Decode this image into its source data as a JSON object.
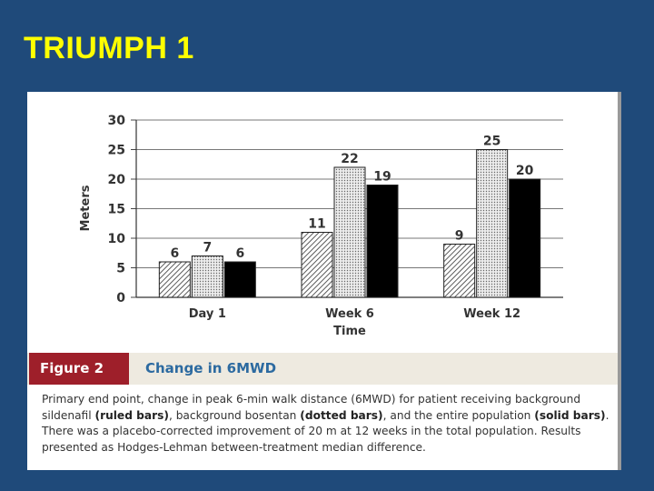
{
  "slide": {
    "title": "TRIUMPH 1"
  },
  "figure": {
    "tag": "Figure 2",
    "title": "Change in 6MWD",
    "caption": {
      "p1": "Primary end point, change in peak 6-min walk distance (6MWD) for patient receiving background sildenafil ",
      "b1": "(ruled bars)",
      "p2": ", background bosentan ",
      "b2": "(dotted bars)",
      "p3": ", and the entire population ",
      "b3": "(solid bars)",
      "p4": ". There was a placebo-corrected improvement of 20 m at 12 weeks in the total population. Results presented as Hodges-Lehman between-treatment median difference."
    }
  },
  "chart_data": {
    "type": "bar",
    "title": "",
    "xlabel": "Time",
    "ylabel": "Meters",
    "ylim": [
      0,
      30
    ],
    "yticks": [
      0,
      5,
      10,
      15,
      20,
      25,
      30
    ],
    "grid": true,
    "categories": [
      "Day 1",
      "Week 6",
      "Week 12"
    ],
    "series": [
      {
        "pattern": "ruled",
        "values": [
          6,
          11,
          9
        ]
      },
      {
        "pattern": "dotted",
        "values": [
          7,
          22,
          25
        ]
      },
      {
        "pattern": "solid",
        "values": [
          6,
          19,
          20
        ]
      }
    ]
  }
}
